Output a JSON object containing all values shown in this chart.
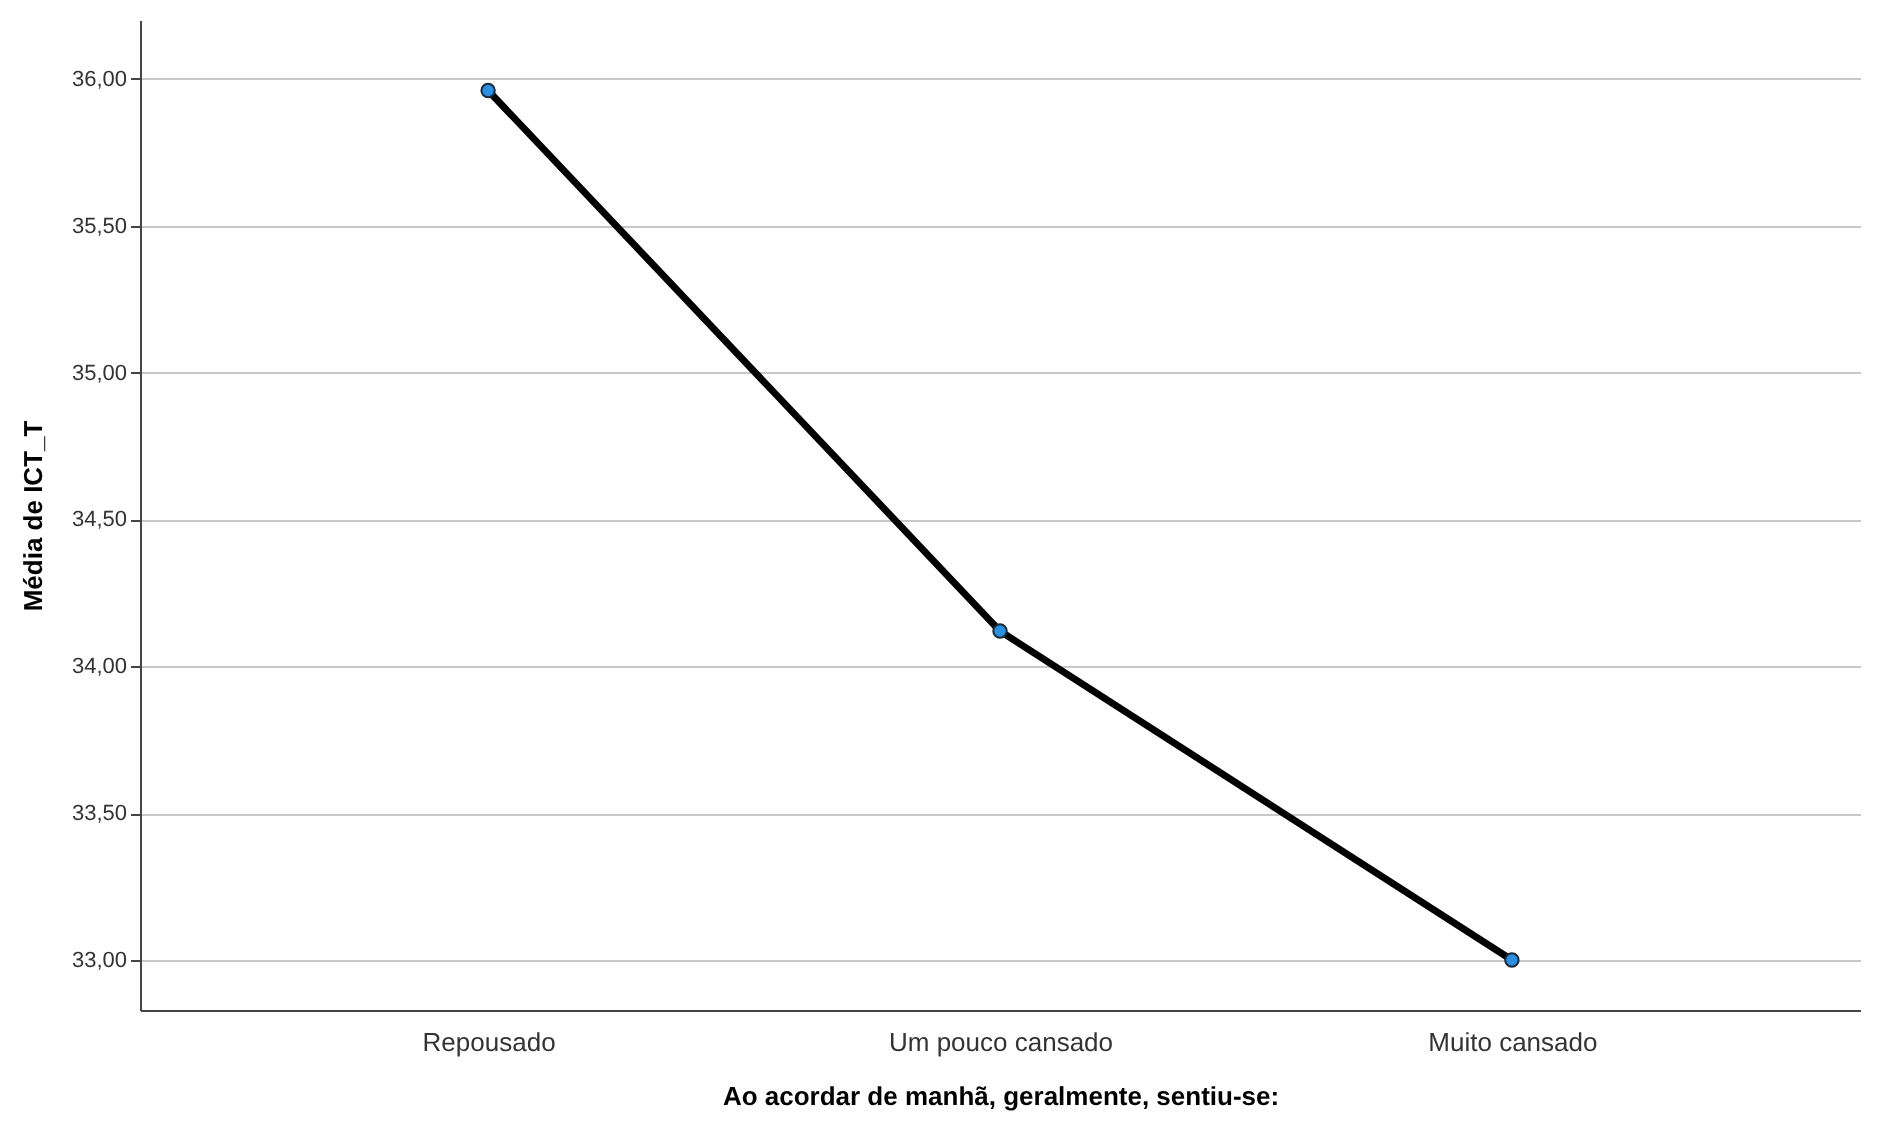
{
  "chart_data": {
    "type": "line",
    "xlabel": "Ao acordar de manhã, geralmente, sentiu-se:",
    "ylabel": "Média de ICT_T",
    "categories": [
      "Repousado",
      "Um pouco cansado",
      "Muito cansado"
    ],
    "series": [
      {
        "color": "#000000",
        "values": [
          35.96,
          34.12,
          33.0
        ]
      }
    ],
    "ylim": [
      32.83,
      36.2
    ],
    "yticks": [
      {
        "value": 33,
        "label": "33,00"
      },
      {
        "value": 33.5,
        "label": "33,50"
      },
      {
        "value": 34,
        "label": "34,00"
      },
      {
        "value": 34.5,
        "label": "34,50"
      },
      {
        "value": 35,
        "label": "35,00"
      },
      {
        "value": 35.5,
        "label": "35,50"
      },
      {
        "value": 36,
        "label": "36,00"
      }
    ],
    "grid": "y",
    "marker": "circle",
    "line_style": "solid",
    "legend": false
  }
}
